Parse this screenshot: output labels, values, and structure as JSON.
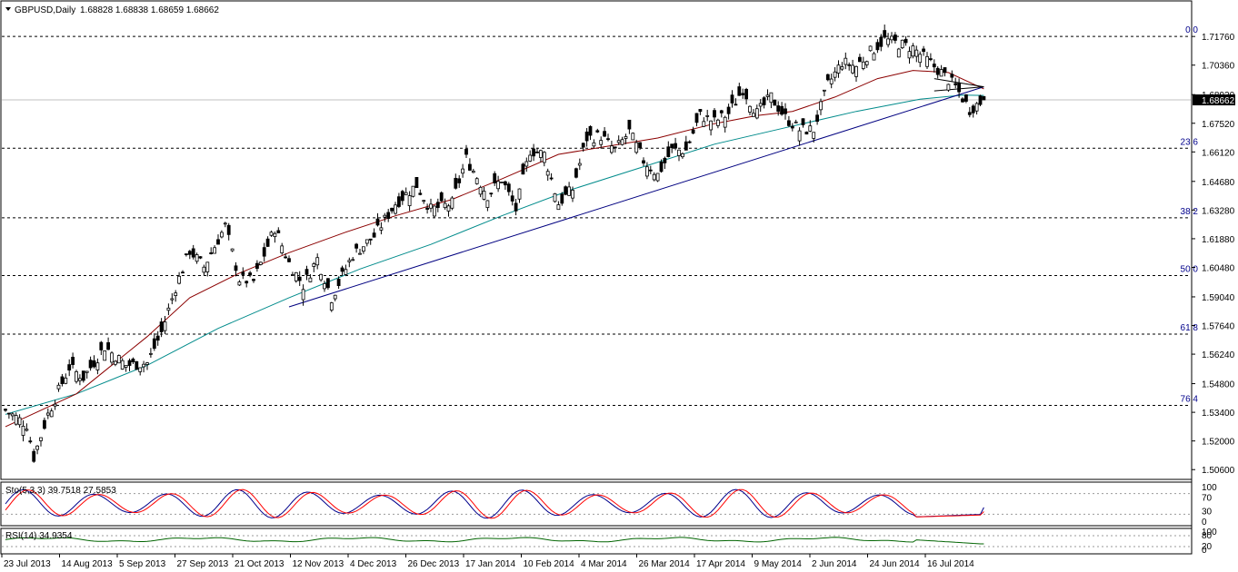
{
  "header": {
    "symbol_label": "GBPUSD,Daily",
    "ohlc_label": "1.68828 1.68838 1.68659 1.68662"
  },
  "colors": {
    "background": "#ffffff",
    "axis": "#000000",
    "grid_dashed": "#000000",
    "candle_up_fill": "#ffffff",
    "candle_down_fill": "#000000",
    "ma_fast": "#8b0000",
    "ma_slow": "#008b8b",
    "trendline": "#000080",
    "stoch_main": "#00008b",
    "stoch_signal": "#ff0000",
    "rsi": "#006400",
    "fibo_text": "#00008b",
    "current_price_box": "#000000"
  },
  "chart_data": {
    "type": "candlestick",
    "symbol": "GBPUSD",
    "timeframe": "Daily",
    "last_ohlc": {
      "open": 1.68828,
      "high": 1.68838,
      "low": 1.68659,
      "close": 1.68662
    },
    "current_price_label": "1.68662",
    "ylim": [
      1.503,
      1.723
    ],
    "y_ticks": [
      "1.71760",
      "1.70360",
      "1.68920",
      "1.67520",
      "1.66120",
      "1.64680",
      "1.63280",
      "1.61880",
      "1.60480",
      "1.59040",
      "1.57640",
      "1.56240",
      "1.54800",
      "1.53400",
      "1.52000",
      "1.50600"
    ],
    "x_ticks": [
      "23 Jul 2013",
      "14 Aug 2013",
      "5 Sep 2013",
      "27 Sep 2013",
      "21 Oct 2013",
      "12 Nov 2013",
      "4 Dec 2013",
      "26 Dec 2013",
      "17 Jan 2014",
      "10 Feb 2014",
      "4 Mar 2014",
      "26 Mar 2014",
      "17 Apr 2014",
      "9 May 2014",
      "2 Jun 2014",
      "24 Jun 2014",
      "16 Jul 2014"
    ],
    "fibonacci_levels": [
      {
        "label": "0.0",
        "price": 1.7176
      },
      {
        "label": "23.6",
        "price": 1.663
      },
      {
        "label": "38.2",
        "price": 1.629
      },
      {
        "label": "50.0",
        "price": 1.6008
      },
      {
        "label": "61.8",
        "price": 1.5722
      },
      {
        "label": "76.4",
        "price": 1.5374
      }
    ],
    "close_path": [
      [
        0,
        1.535
      ],
      [
        6,
        1.528
      ],
      [
        8,
        1.512
      ],
      [
        12,
        1.533
      ],
      [
        18,
        1.556
      ],
      [
        22,
        1.551
      ],
      [
        28,
        1.566
      ],
      [
        34,
        1.557
      ],
      [
        40,
        1.558
      ],
      [
        44,
        1.573
      ],
      [
        48,
        1.595
      ],
      [
        52,
        1.613
      ],
      [
        56,
        1.605
      ],
      [
        62,
        1.625
      ],
      [
        66,
        1.599
      ],
      [
        70,
        1.598
      ],
      [
        76,
        1.624
      ],
      [
        80,
        1.607
      ],
      [
        84,
        1.596
      ],
      [
        88,
        1.609
      ],
      [
        92,
        1.59
      ],
      [
        98,
        1.611
      ],
      [
        104,
        1.62
      ],
      [
        110,
        1.636
      ],
      [
        116,
        1.645
      ],
      [
        120,
        1.633
      ],
      [
        126,
        1.636
      ],
      [
        130,
        1.658
      ],
      [
        136,
        1.64
      ],
      [
        140,
        1.648
      ],
      [
        144,
        1.633
      ],
      [
        148,
        1.662
      ],
      [
        152,
        1.66
      ],
      [
        156,
        1.636
      ],
      [
        160,
        1.643
      ],
      [
        164,
        1.668
      ],
      [
        168,
        1.669
      ],
      [
        172,
        1.662
      ],
      [
        176,
        1.671
      ],
      [
        180,
        1.657
      ],
      [
        184,
        1.65
      ],
      [
        188,
        1.662
      ],
      [
        192,
        1.662
      ],
      [
        196,
        1.679
      ],
      [
        200,
        1.676
      ],
      [
        204,
        1.68
      ],
      [
        208,
        1.692
      ],
      [
        212,
        1.68
      ],
      [
        216,
        1.688
      ],
      [
        220,
        1.678
      ],
      [
        224,
        1.672
      ],
      [
        228,
        1.672
      ],
      [
        232,
        1.694
      ],
      [
        236,
        1.705
      ],
      [
        240,
        1.703
      ],
      [
        244,
        1.71
      ],
      [
        248,
        1.716
      ],
      [
        252,
        1.714
      ],
      [
        256,
        1.712
      ],
      [
        260,
        1.706
      ],
      [
        264,
        1.7
      ],
      [
        268,
        1.693
      ],
      [
        272,
        1.682
      ],
      [
        276,
        1.6866
      ]
    ],
    "ma_fast_path": [
      [
        0,
        1.527
      ],
      [
        20,
        1.543
      ],
      [
        40,
        1.571
      ],
      [
        52,
        1.59
      ],
      [
        66,
        1.602
      ],
      [
        80,
        1.612
      ],
      [
        96,
        1.622
      ],
      [
        110,
        1.63
      ],
      [
        126,
        1.638
      ],
      [
        140,
        1.648
      ],
      [
        156,
        1.66
      ],
      [
        170,
        1.664
      ],
      [
        184,
        1.668
      ],
      [
        200,
        1.675
      ],
      [
        212,
        1.679
      ],
      [
        222,
        1.681
      ],
      [
        234,
        1.688
      ],
      [
        246,
        1.697
      ],
      [
        256,
        1.701
      ],
      [
        266,
        1.7
      ],
      [
        276,
        1.692
      ]
    ],
    "ma_slow_path": [
      [
        0,
        1.533
      ],
      [
        20,
        1.543
      ],
      [
        40,
        1.557
      ],
      [
        60,
        1.575
      ],
      [
        80,
        1.59
      ],
      [
        100,
        1.604
      ],
      [
        120,
        1.616
      ],
      [
        140,
        1.63
      ],
      [
        160,
        1.643
      ],
      [
        180,
        1.654
      ],
      [
        200,
        1.665
      ],
      [
        220,
        1.673
      ],
      [
        240,
        1.681
      ],
      [
        258,
        1.687
      ],
      [
        270,
        1.689
      ],
      [
        276,
        1.6888
      ]
    ],
    "trendline": {
      "start": [
        80,
        1.5855
      ],
      "end": [
        276,
        1.693
      ]
    },
    "apex_lines": [
      [
        [
          262,
          1.697
        ],
        [
          276,
          1.693
        ]
      ],
      [
        [
          262,
          1.691
        ],
        [
          276,
          1.693
        ]
      ]
    ],
    "stochastic": {
      "label": "Sto(5,3,3) 39.7518 27.5853",
      "main": 39.7518,
      "signal": 27.5853,
      "levels": [
        20,
        80
      ],
      "scale_labels": [
        "100",
        "70",
        "30",
        "0"
      ]
    },
    "rsi": {
      "label": "RSI(14) 34.9354",
      "value": 34.9354,
      "scale_labels": [
        "100",
        "80",
        "20",
        "0"
      ]
    }
  }
}
